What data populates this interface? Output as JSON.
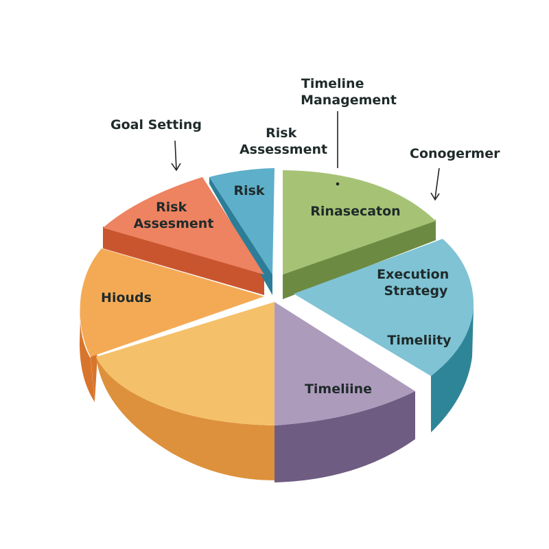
{
  "chart_data": {
    "type": "pie",
    "title": "",
    "slices": [
      {
        "label": "Rinasecaton",
        "value": 13,
        "color": "#a6c375",
        "side": "#6d8a43"
      },
      {
        "label": "Execution Strategy",
        "value": 18,
        "color": "#7fc3d4",
        "side": "#2f8598"
      },
      {
        "label": "Timeliity",
        "value": 0,
        "color": "#7fc3d4",
        "side": "#2f8598"
      },
      {
        "label": "Timeliine",
        "value": 16,
        "color": "#ad9bbc",
        "side": "#6f5c82"
      },
      {
        "label": "",
        "value": 22,
        "color": "#f5c06a",
        "side": "#dd913c"
      },
      {
        "label": "Hiouds",
        "value": 13,
        "color": "#f4aa55",
        "side": "#d8752c"
      },
      {
        "label": "Risk Assesment",
        "value": 11,
        "color": "#ed8361",
        "side": "#c9552f"
      },
      {
        "label": "Risk",
        "value": 7,
        "color": "#5eafc9",
        "side": "#2c7d98"
      }
    ],
    "callouts": [
      {
        "text": "Goal Setting"
      },
      {
        "text": "Risk Assessment"
      },
      {
        "text": "Timeline Management"
      },
      {
        "text": "Conogermer"
      }
    ]
  }
}
